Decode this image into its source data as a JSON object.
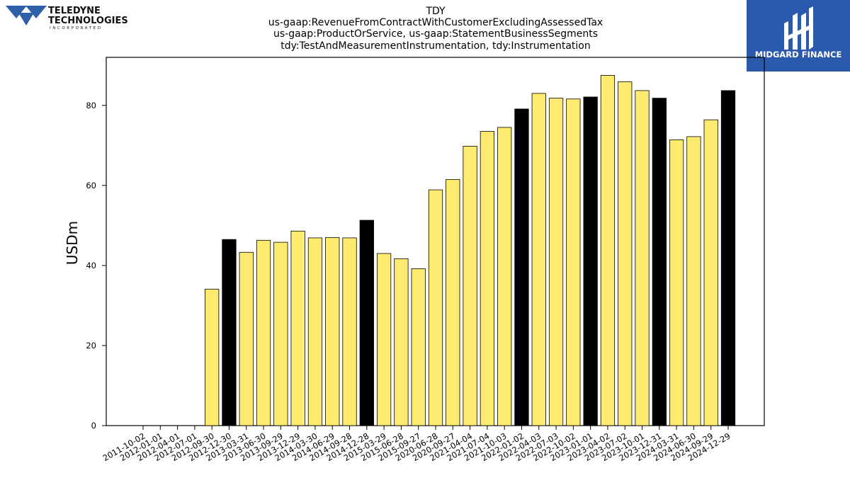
{
  "company_logo": {
    "name_line1": "TELEDYNE",
    "name_line2": "TECHNOLOGIES",
    "name_line3": "INCORPORATED",
    "color": "#2E5FA8"
  },
  "brand": {
    "name": "MIDGARD FINANCE",
    "background": "#2B59AC",
    "text_color": "#FFFFFF"
  },
  "chart_data": {
    "type": "bar",
    "title_lines": [
      "TDY",
      "us-gaap:RevenueFromContractWithCustomerExcludingAssessedTax",
      "us-gaap:ProductOrService, us-gaap:StatementBusinessSegments",
      "tdy:TestAndMeasurementInstrumentation, tdy:Instrumentation"
    ],
    "xlabel": "",
    "ylabel": "USDm",
    "ylim": [
      0,
      92
    ],
    "yticks": [
      0,
      20,
      40,
      60,
      80
    ],
    "grid": false,
    "legend": "none",
    "colors": {
      "quarter": "#FFEA70",
      "year_end": "#000000",
      "edge": "#000000"
    },
    "categories": [
      "2011-10-02",
      "2012-01-01",
      "2012-04-01",
      "2012-07-01",
      "2012-09-30",
      "2012-12-30",
      "2013-03-31",
      "2013-06-30",
      "2013-09-29",
      "2013-12-29",
      "2014-03-30",
      "2014-06-29",
      "2014-09-28",
      "2014-12-28",
      "2015-03-29",
      "2015-06-28",
      "2015-09-27",
      "2020-06-28",
      "2020-09-27",
      "2021-04-04",
      "2021-07-04",
      "2021-10-03",
      "2022-01-02",
      "2022-04-03",
      "2022-07-03",
      "2022-10-02",
      "2023-01-01",
      "2023-04-02",
      "2023-07-02",
      "2023-10-01",
      "2023-12-31",
      "2024-03-31",
      "2024-06-30",
      "2024-09-29",
      "2024-12-29"
    ],
    "values": [
      null,
      null,
      null,
      null,
      34.1,
      46.5,
      43.3,
      46.3,
      45.8,
      48.6,
      46.9,
      47.0,
      46.9,
      51.3,
      43.0,
      41.7,
      39.2,
      58.9,
      61.5,
      69.8,
      73.5,
      74.5,
      79.1,
      83.0,
      81.8,
      81.6,
      82.1,
      87.5,
      85.9,
      83.7,
      81.8,
      71.4,
      72.2,
      76.4,
      83.7
    ],
    "highlight": [
      false,
      false,
      false,
      false,
      false,
      true,
      false,
      false,
      false,
      false,
      false,
      false,
      false,
      true,
      false,
      false,
      false,
      false,
      false,
      false,
      false,
      false,
      true,
      false,
      false,
      false,
      true,
      false,
      false,
      false,
      true,
      false,
      false,
      false,
      true
    ]
  }
}
